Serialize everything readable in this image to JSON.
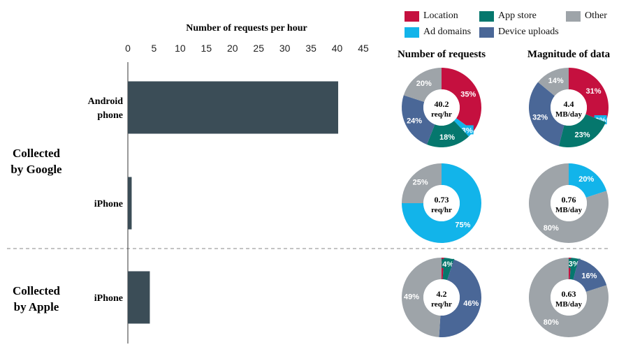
{
  "colors": {
    "location": "#c5103f",
    "app_store": "#05776d",
    "other": "#9ea4a9",
    "ad_domains": "#12b4ea",
    "device_uploads": "#4a6797",
    "bar": "#3b4d57",
    "axis": "#333333",
    "divider": "#888888"
  },
  "legend": [
    {
      "key": "location",
      "label": "Location"
    },
    {
      "key": "app_store",
      "label": "App store"
    },
    {
      "key": "other",
      "label": "Other"
    },
    {
      "key": "ad_domains",
      "label": "Ad domains"
    },
    {
      "key": "device_uploads",
      "label": "Device uploads"
    }
  ],
  "headers": {
    "bar_title": "Number of requests per hour",
    "requests": "Number of requests",
    "magnitude": "Magnitude of data"
  },
  "groups": [
    {
      "label_lines": [
        "Collected",
        "by Google"
      ]
    },
    {
      "label_lines": [
        "Collected",
        "by Apple"
      ]
    }
  ],
  "chart_data": [
    {
      "type": "bar",
      "title": "Number of requests per hour",
      "orientation": "horizontal",
      "categories": [
        "Android phone",
        "iPhone",
        "iPhone"
      ],
      "category_groups": [
        "Collected by Google",
        "Collected by Google",
        "Collected by Apple"
      ],
      "values": [
        40.2,
        0.73,
        4.2
      ],
      "xlim": [
        0,
        45
      ],
      "xticks": [
        0,
        5,
        10,
        15,
        20,
        25,
        30,
        35,
        40,
        45
      ]
    },
    {
      "type": "pie",
      "title": "Number of requests",
      "charts": [
        {
          "row": "Android phone (Google)",
          "center_value": "40.2",
          "center_unit": "req/hr",
          "slices": [
            {
              "name": "Location",
              "key": "location",
              "value": 35,
              "label": "35%"
            },
            {
              "name": "Ad domains",
              "key": "ad_domains",
              "value": 3,
              "label": "3%"
            },
            {
              "name": "App store",
              "key": "app_store",
              "value": 18,
              "label": "18%"
            },
            {
              "name": "Device uploads",
              "key": "device_uploads",
              "value": 24,
              "label": "24%"
            },
            {
              "name": "Other",
              "key": "other",
              "value": 20,
              "label": "20%"
            }
          ]
        },
        {
          "row": "iPhone (Google)",
          "center_value": "0.73",
          "center_unit": "req/hr",
          "slices": [
            {
              "name": "Ad domains",
              "key": "ad_domains",
              "value": 75,
              "label": "75%"
            },
            {
              "name": "Other",
              "key": "other",
              "value": 25,
              "label": "25%"
            }
          ]
        },
        {
          "row": "iPhone (Apple)",
          "center_value": "4.2",
          "center_unit": "req/hr",
          "slices": [
            {
              "name": "Location",
              "key": "location",
              "value": 1,
              "label": "1%"
            },
            {
              "name": "App store",
              "key": "app_store",
              "value": 4,
              "label": "4%"
            },
            {
              "name": "Device uploads",
              "key": "device_uploads",
              "value": 46,
              "label": "46%"
            },
            {
              "name": "Other",
              "key": "other",
              "value": 49,
              "label": "49%"
            }
          ]
        }
      ]
    },
    {
      "type": "pie",
      "title": "Magnitude of data",
      "charts": [
        {
          "row": "Android phone (Google)",
          "center_value": "4.4",
          "center_unit": "MB/day",
          "slices": [
            {
              "name": "Location",
              "key": "location",
              "value": 31,
              "label": "31%"
            },
            {
              "name": "Ad domains",
              "key": "ad_domains",
              "value": 0,
              "label": "0%"
            },
            {
              "name": "App store",
              "key": "app_store",
              "value": 23,
              "label": "23%"
            },
            {
              "name": "Device uploads",
              "key": "device_uploads",
              "value": 32,
              "label": "32%"
            },
            {
              "name": "Other",
              "key": "other",
              "value": 14,
              "label": "14%"
            }
          ]
        },
        {
          "row": "iPhone (Google)",
          "center_value": "0.76",
          "center_unit": "MB/day",
          "slices": [
            {
              "name": "Ad domains",
              "key": "ad_domains",
              "value": 20,
              "label": "20%"
            },
            {
              "name": "Other",
              "key": "other",
              "value": 80,
              "label": "80%"
            }
          ]
        },
        {
          "row": "iPhone (Apple)",
          "center_value": "0.63",
          "center_unit": "MB/day",
          "slices": [
            {
              "name": "Location",
              "key": "location",
              "value": 1,
              "label": "1%"
            },
            {
              "name": "App store",
              "key": "app_store",
              "value": 3,
              "label": "3%"
            },
            {
              "name": "Device uploads",
              "key": "device_uploads",
              "value": 16,
              "label": "16%"
            },
            {
              "name": "Other",
              "key": "other",
              "value": 80,
              "label": "80%"
            }
          ]
        }
      ]
    }
  ]
}
